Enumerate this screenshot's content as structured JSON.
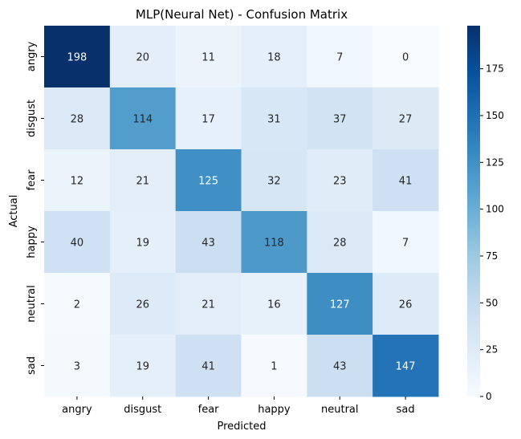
{
  "chart_data": {
    "type": "heatmap",
    "title": "MLP(Neural Net) - Confusion Matrix",
    "xlabel": "Predicted",
    "ylabel": "Actual",
    "x_categories": [
      "angry",
      "disgust",
      "fear",
      "happy",
      "neutral",
      "sad"
    ],
    "y_categories": [
      "angry",
      "disgust",
      "fear",
      "happy",
      "neutral",
      "sad"
    ],
    "values": [
      [
        198,
        20,
        11,
        18,
        7,
        0
      ],
      [
        28,
        114,
        17,
        31,
        37,
        27
      ],
      [
        12,
        21,
        125,
        32,
        23,
        41
      ],
      [
        40,
        19,
        43,
        118,
        28,
        7
      ],
      [
        2,
        26,
        21,
        16,
        127,
        26
      ],
      [
        3,
        19,
        41,
        1,
        43,
        147
      ]
    ],
    "colormap": "Blues",
    "color_range": [
      0,
      198
    ],
    "colorbar_ticks": [
      "0",
      "25",
      "50",
      "75",
      "100",
      "125",
      "150",
      "175"
    ]
  }
}
